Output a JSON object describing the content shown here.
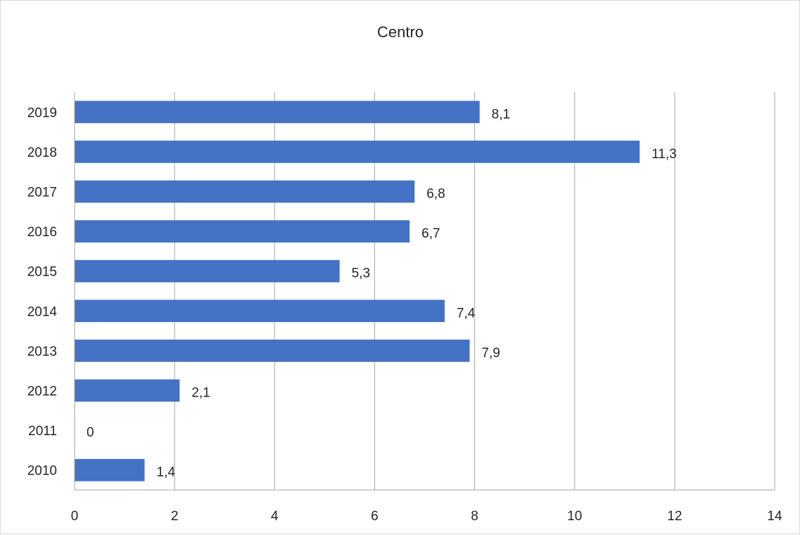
{
  "chart_data": {
    "type": "bar",
    "orientation": "horizontal",
    "title": "Centro",
    "xlabel": "",
    "ylabel": "",
    "categories": [
      "2010",
      "2011",
      "2012",
      "2013",
      "2014",
      "2015",
      "2016",
      "2017",
      "2018",
      "2019"
    ],
    "values": [
      1.4,
      0,
      2.1,
      7.9,
      7.4,
      5.3,
      6.7,
      6.8,
      11.3,
      8.1
    ],
    "data_labels": [
      "1,4",
      "0",
      "2,1",
      "7,9",
      "7,4",
      "5,3",
      "6,7",
      "6,8",
      "11,3",
      "8,1"
    ],
    "xlim": [
      0,
      14
    ],
    "x_ticks": [
      "0",
      "2",
      "4",
      "6",
      "8",
      "10",
      "12",
      "14"
    ],
    "grid": "vertical",
    "legend": "none",
    "bar_color": "#4472C4"
  }
}
